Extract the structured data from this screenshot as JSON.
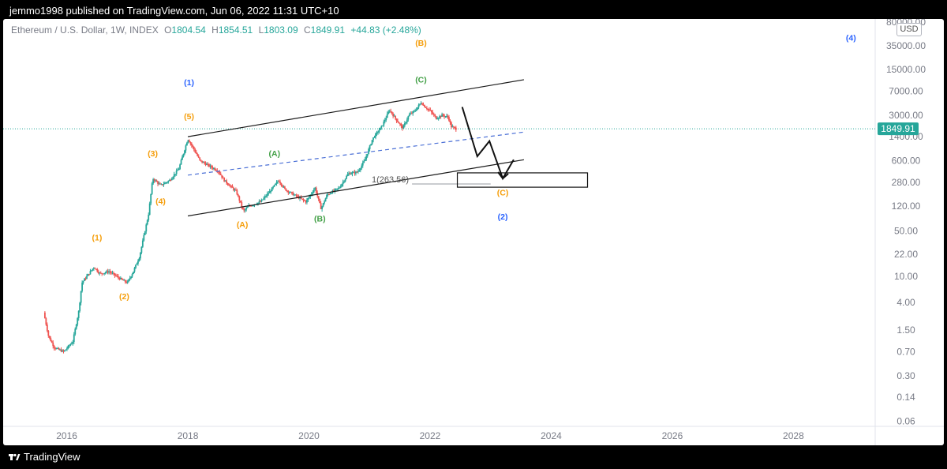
{
  "header": {
    "publisher_text": "jemmo1998 published on TradingView.com, Jun 06, 2022 11:31 UTC+10"
  },
  "legend": {
    "symbol": "Ethereum / U.S. Dollar, 1W, INDEX",
    "open_label": "O",
    "open": "1804.54",
    "high_label": "H",
    "high": "1854.51",
    "low_label": "L",
    "low": "1803.09",
    "close_label": "C",
    "close": "1849.91",
    "change": "+44.83 (+2.48%)"
  },
  "currency_badge": "USD",
  "footer": {
    "brand": "TradingView"
  },
  "colors": {
    "up": "#26a69a",
    "down": "#ef5350",
    "orange": "#f59e0b",
    "green": "#43a047",
    "blue": "#2962ff",
    "price_line": "#26a69a",
    "axis_text": "#787b86"
  },
  "chart_data": {
    "type": "candlestick",
    "symbol": "ETHUSD",
    "timeframe": "1W",
    "y_scale": "log",
    "ylim": [
      0.05,
      90000
    ],
    "xlim": [
      2014.95,
      2029.35
    ],
    "x_ticks": [
      "2016",
      "2018",
      "2020",
      "2022",
      "2024",
      "2026",
      "2028"
    ],
    "x_tick_values": [
      2016,
      2018,
      2020,
      2022,
      2024,
      2026,
      2028
    ],
    "y_ticks": [
      "80000.00",
      "35000.00",
      "15000.00",
      "7000.00",
      "3000.00",
      "1400.00",
      "600.00",
      "280.00",
      "120.00",
      "50.00",
      "22.00",
      "10.00",
      "4.00",
      "1.50",
      "0.70",
      "0.30",
      "0.14",
      "0.06"
    ],
    "y_tick_values": [
      80000,
      35000,
      15000,
      7000,
      3000,
      1400,
      600,
      280,
      120,
      50,
      22,
      10,
      4,
      1.5,
      0.7,
      0.3,
      0.14,
      0.06
    ],
    "last_price": {
      "value": 1849.91,
      "label": "1849.91"
    },
    "price_path": [
      [
        2015.62,
        2.8
      ],
      [
        2015.7,
        1.2
      ],
      [
        2015.8,
        0.8
      ],
      [
        2015.95,
        0.7
      ],
      [
        2016.1,
        1.0
      ],
      [
        2016.2,
        3.0
      ],
      [
        2016.25,
        8.0
      ],
      [
        2016.45,
        14.0
      ],
      [
        2016.55,
        11.0
      ],
      [
        2016.7,
        12.0
      ],
      [
        2016.9,
        9.0
      ],
      [
        2017.0,
        8.0
      ],
      [
        2017.1,
        12.0
      ],
      [
        2017.2,
        20.0
      ],
      [
        2017.35,
        90.0
      ],
      [
        2017.42,
        320.0
      ],
      [
        2017.55,
        250.0
      ],
      [
        2017.7,
        300.0
      ],
      [
        2017.85,
        450.0
      ],
      [
        2018.0,
        1300.0
      ],
      [
        2018.1,
        900.0
      ],
      [
        2018.2,
        600.0
      ],
      [
        2018.35,
        500.0
      ],
      [
        2018.5,
        420.0
      ],
      [
        2018.6,
        300.0
      ],
      [
        2018.8,
        200.0
      ],
      [
        2018.92,
        100.0
      ],
      [
        2019.0,
        120.0
      ],
      [
        2019.2,
        140.0
      ],
      [
        2019.35,
        200.0
      ],
      [
        2019.5,
        300.0
      ],
      [
        2019.6,
        220.0
      ],
      [
        2019.75,
        180.0
      ],
      [
        2019.95,
        140.0
      ],
      [
        2020.1,
        230.0
      ],
      [
        2020.2,
        110.0
      ],
      [
        2020.3,
        180.0
      ],
      [
        2020.5,
        230.0
      ],
      [
        2020.65,
        380.0
      ],
      [
        2020.8,
        400.0
      ],
      [
        2020.92,
        600.0
      ],
      [
        2021.05,
        1300.0
      ],
      [
        2021.2,
        2000.0
      ],
      [
        2021.33,
        3600.0
      ],
      [
        2021.45,
        2500.0
      ],
      [
        2021.55,
        1900.0
      ],
      [
        2021.65,
        3000.0
      ],
      [
        2021.75,
        3500.0
      ],
      [
        2021.85,
        4700.0
      ],
      [
        2021.92,
        4000.0
      ],
      [
        2022.0,
        3500.0
      ],
      [
        2022.1,
        2700.0
      ],
      [
        2022.2,
        3000.0
      ],
      [
        2022.3,
        2800.0
      ],
      [
        2022.35,
        2000.0
      ],
      [
        2022.43,
        1849.91
      ]
    ],
    "wave_labels": [
      {
        "text": "(1)",
        "color": "orange",
        "x": 2016.5,
        "y": 36
      },
      {
        "text": "(2)",
        "color": "orange",
        "x": 2016.95,
        "y": 4.5
      },
      {
        "text": "(3)",
        "color": "orange",
        "x": 2017.42,
        "y": 700
      },
      {
        "text": "(4)",
        "color": "orange",
        "x": 2017.55,
        "y": 130
      },
      {
        "text": "(5)",
        "color": "orange",
        "x": 2018.02,
        "y": 2600
      },
      {
        "text": "(1)",
        "color": "blue",
        "x": 2018.02,
        "y": 8600
      },
      {
        "text": "(A)",
        "color": "green",
        "x": 2019.43,
        "y": 700
      },
      {
        "text": "(A)",
        "color": "orange",
        "x": 2018.9,
        "y": 57
      },
      {
        "text": "(B)",
        "color": "green",
        "x": 2020.18,
        "y": 70
      },
      {
        "text": "(B)",
        "color": "orange",
        "x": 2021.85,
        "y": 35000
      },
      {
        "text": "(C)",
        "color": "green",
        "x": 2021.85,
        "y": 9500
      },
      {
        "text": "(C)",
        "color": "orange",
        "x": 2023.2,
        "y": 175
      },
      {
        "text": "(2)",
        "color": "blue",
        "x": 2023.2,
        "y": 75
      },
      {
        "text": "(4)",
        "color": "blue",
        "x": 2028.95,
        "y": 42000
      }
    ],
    "channel_lines": [
      {
        "x1": 2018.0,
        "y1": 1400,
        "x2": 2023.55,
        "y2": 10500,
        "style": "solid"
      },
      {
        "x1": 2018.0,
        "y1": 85,
        "x2": 2023.55,
        "y2": 620,
        "style": "solid"
      },
      {
        "x1": 2018.0,
        "y1": 360,
        "x2": 2023.55,
        "y2": 1650,
        "style": "dashed"
      }
    ],
    "projection_path": [
      [
        2022.53,
        4000
      ],
      [
        2022.78,
        700
      ],
      [
        2022.98,
        1200
      ],
      [
        2023.2,
        320
      ],
      [
        2023.38,
        620
      ]
    ],
    "fib_level": {
      "text": "1(263.56)",
      "value": 263.56,
      "x1": 2021.05,
      "x2": 2023.0
    },
    "target_box": {
      "x1": 2022.45,
      "x2": 2024.6,
      "y_low": 235,
      "y_high": 390
    }
  }
}
